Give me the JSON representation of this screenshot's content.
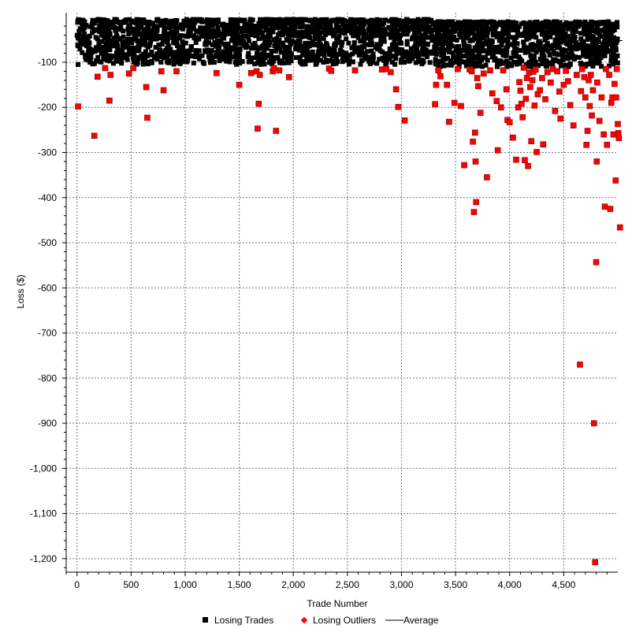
{
  "chart_data": {
    "type": "scatter",
    "title": "",
    "xlabel": "Trade Number",
    "ylabel": "Loss ($)",
    "xlim": [
      -100,
      5000
    ],
    "ylim": [
      -1230,
      10
    ],
    "x_ticks": [
      0,
      500,
      1000,
      1500,
      2000,
      2500,
      3000,
      3500,
      4000,
      4500
    ],
    "x_tick_labels": [
      "0",
      "500",
      "1,000",
      "1,500",
      "2,000",
      "2,500",
      "3,000",
      "3,500",
      "4,000",
      "4,500"
    ],
    "y_ticks": [
      -100,
      -200,
      -300,
      -400,
      -500,
      -600,
      -700,
      -800,
      -900,
      -1000,
      -1100,
      -1200
    ],
    "y_tick_labels": [
      "-100",
      "-200",
      "-300",
      "-400",
      "-500",
      "-600",
      "-700",
      "-800",
      "-900",
      "-1,000",
      "-1,100",
      "-1,200"
    ],
    "grid": true,
    "legend_position": "bottom",
    "series": [
      {
        "name": "Losing Trades",
        "color": "#000000",
        "marker": "square",
        "density_segments": [
          {
            "x": [
              0,
              3300
            ],
            "y_max": -5,
            "y_min": -105,
            "count": 1700
          },
          {
            "x": [
              3300,
              5000
            ],
            "y_max": -10,
            "y_min": -110,
            "count": 1000
          }
        ],
        "points": [
          [
            10,
            -105
          ],
          [
            120,
            -100
          ],
          [
            380,
            -98
          ],
          [
            560,
            -101
          ],
          [
            1020,
            -97
          ],
          [
            1600,
            -99
          ],
          [
            2100,
            -100
          ],
          [
            2700,
            -98
          ],
          [
            3320,
            -104
          ],
          [
            3600,
            -108
          ],
          [
            4200,
            -106
          ],
          [
            4700,
            -109
          ]
        ]
      },
      {
        "name": "Losing Outliers",
        "color": "#ff0000",
        "marker": "square",
        "points": [
          [
            10,
            -198
          ],
          [
            160,
            -263
          ],
          [
            190,
            -132
          ],
          [
            260,
            -113
          ],
          [
            300,
            -185
          ],
          [
            310,
            -128
          ],
          [
            480,
            -125
          ],
          [
            520,
            -113
          ],
          [
            640,
            -155
          ],
          [
            650,
            -223
          ],
          [
            780,
            -120
          ],
          [
            800,
            -162
          ],
          [
            920,
            -120
          ],
          [
            1290,
            -124
          ],
          [
            1500,
            -150
          ],
          [
            1610,
            -124
          ],
          [
            1660,
            -120
          ],
          [
            1670,
            -247
          ],
          [
            1680,
            -192
          ],
          [
            1690,
            -128
          ],
          [
            1810,
            -120
          ],
          [
            1820,
            -113
          ],
          [
            1840,
            -252
          ],
          [
            1870,
            -118
          ],
          [
            1960,
            -133
          ],
          [
            2330,
            -114
          ],
          [
            2350,
            -119
          ],
          [
            2570,
            -118
          ],
          [
            2820,
            -116
          ],
          [
            2860,
            -115
          ],
          [
            2900,
            -122
          ],
          [
            2950,
            -160
          ],
          [
            2970,
            -199
          ],
          [
            3030,
            -229
          ],
          [
            3310,
            -193
          ],
          [
            3320,
            -150
          ],
          [
            3340,
            -118
          ],
          [
            3360,
            -131
          ],
          [
            3420,
            -150
          ],
          [
            3440,
            -232
          ],
          [
            3490,
            -190
          ],
          [
            3520,
            -115
          ],
          [
            3550,
            -197
          ],
          [
            3580,
            -328
          ],
          [
            3630,
            -116
          ],
          [
            3650,
            -120
          ],
          [
            3660,
            -276
          ],
          [
            3670,
            -432
          ],
          [
            3680,
            -256
          ],
          [
            3685,
            -320
          ],
          [
            3690,
            -410
          ],
          [
            3700,
            -135
          ],
          [
            3710,
            -153
          ],
          [
            3730,
            -212
          ],
          [
            3760,
            -125
          ],
          [
            3790,
            -355
          ],
          [
            3820,
            -118
          ],
          [
            3840,
            -169
          ],
          [
            3880,
            -186
          ],
          [
            3890,
            -295
          ],
          [
            3920,
            -200
          ],
          [
            3940,
            -118
          ],
          [
            3970,
            -160
          ],
          [
            3980,
            -228
          ],
          [
            4000,
            -233
          ],
          [
            4030,
            -267
          ],
          [
            4060,
            -316
          ],
          [
            4080,
            -200
          ],
          [
            4090,
            -144
          ],
          [
            4100,
            -163
          ],
          [
            4110,
            -192
          ],
          [
            4120,
            -222
          ],
          [
            4130,
            -112
          ],
          [
            4140,
            -317
          ],
          [
            4150,
            -181
          ],
          [
            4160,
            -135
          ],
          [
            4170,
            -330
          ],
          [
            4180,
            -123
          ],
          [
            4190,
            -155
          ],
          [
            4200,
            -275
          ],
          [
            4210,
            -140
          ],
          [
            4220,
            -121
          ],
          [
            4230,
            -196
          ],
          [
            4240,
            -116
          ],
          [
            4250,
            -299
          ],
          [
            4260,
            -171
          ],
          [
            4280,
            -162
          ],
          [
            4300,
            -135
          ],
          [
            4310,
            -282
          ],
          [
            4330,
            -182
          ],
          [
            4350,
            -122
          ],
          [
            4380,
            -145
          ],
          [
            4400,
            -115
          ],
          [
            4420,
            -208
          ],
          [
            4440,
            -120
          ],
          [
            4460,
            -165
          ],
          [
            4470,
            -225
          ],
          [
            4500,
            -150
          ],
          [
            4520,
            -119
          ],
          [
            4540,
            -142
          ],
          [
            4560,
            -195
          ],
          [
            4590,
            -240
          ],
          [
            4620,
            -128
          ],
          [
            4650,
            -770
          ],
          [
            4660,
            -164
          ],
          [
            4670,
            -115
          ],
          [
            4690,
            -133
          ],
          [
            4700,
            -178
          ],
          [
            4710,
            -283
          ],
          [
            4720,
            -252
          ],
          [
            4730,
            -140
          ],
          [
            4740,
            -197
          ],
          [
            4750,
            -128
          ],
          [
            4760,
            -218
          ],
          [
            4770,
            -162
          ],
          [
            4780,
            -900
          ],
          [
            4790,
            -1208
          ],
          [
            4800,
            -543
          ],
          [
            4805,
            -320
          ],
          [
            4810,
            -145
          ],
          [
            4830,
            -230
          ],
          [
            4850,
            -178
          ],
          [
            4870,
            -260
          ],
          [
            4880,
            -420
          ],
          [
            4890,
            -115
          ],
          [
            4900,
            -283
          ],
          [
            4920,
            -128
          ],
          [
            4930,
            -425
          ],
          [
            4940,
            -190
          ],
          [
            4950,
            -178
          ],
          [
            4960,
            -260
          ],
          [
            4970,
            -148
          ],
          [
            4980,
            -362
          ],
          [
            4985,
            -178
          ],
          [
            4990,
            -115
          ],
          [
            5000,
            -237
          ],
          [
            5005,
            -257
          ],
          [
            5010,
            -268
          ],
          [
            5020,
            -466
          ]
        ]
      },
      {
        "name": "Average",
        "color": "#000000",
        "marker": "line",
        "points": [
          [
            5000,
            -52
          ]
        ]
      }
    ]
  },
  "legend": {
    "items": [
      {
        "label": "Losing Trades"
      },
      {
        "label": "Losing Outliers"
      },
      {
        "label": "Average"
      }
    ]
  }
}
